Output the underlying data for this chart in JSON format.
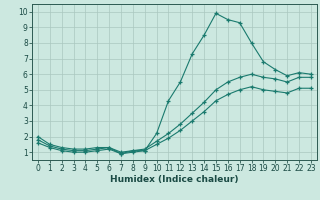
{
  "xlabel": "Humidex (Indice chaleur)",
  "xlim": [
    -0.5,
    23.5
  ],
  "ylim": [
    0.5,
    10.5
  ],
  "xtick_labels": [
    "0",
    "1",
    "2",
    "3",
    "4",
    "5",
    "6",
    "7",
    "8",
    "9",
    "10",
    "11",
    "12",
    "13",
    "14",
    "15",
    "16",
    "17",
    "18",
    "19",
    "20",
    "21",
    "22",
    "23"
  ],
  "xticks": [
    0,
    1,
    2,
    3,
    4,
    5,
    6,
    7,
    8,
    9,
    10,
    11,
    12,
    13,
    14,
    15,
    16,
    17,
    18,
    19,
    20,
    21,
    22,
    23
  ],
  "yticks": [
    1,
    2,
    3,
    4,
    5,
    6,
    7,
    8,
    9,
    10
  ],
  "background_color": "#cce8e0",
  "grid_color": "#aac8c0",
  "line_color": "#1a7a6e",
  "line1_x": [
    0,
    1,
    2,
    3,
    4,
    5,
    6,
    7,
    8,
    9,
    10,
    11,
    12,
    13,
    14,
    15,
    16,
    17,
    18,
    19,
    20,
    21,
    22,
    23
  ],
  "line1_y": [
    2.0,
    1.5,
    1.3,
    1.2,
    1.2,
    1.3,
    1.3,
    0.9,
    1.1,
    1.1,
    2.2,
    4.3,
    5.5,
    7.3,
    8.5,
    9.9,
    9.5,
    9.3,
    8.0,
    6.8,
    6.3,
    5.9,
    6.1,
    6.0
  ],
  "line2_x": [
    0,
    1,
    2,
    3,
    4,
    5,
    6,
    7,
    8,
    9,
    10,
    11,
    12,
    13,
    14,
    15,
    16,
    17,
    18,
    19,
    20,
    21,
    22,
    23
  ],
  "line2_y": [
    1.8,
    1.4,
    1.2,
    1.1,
    1.1,
    1.2,
    1.3,
    1.0,
    1.1,
    1.2,
    1.7,
    2.2,
    2.8,
    3.5,
    4.2,
    5.0,
    5.5,
    5.8,
    6.0,
    5.8,
    5.7,
    5.5,
    5.8,
    5.8
  ],
  "line3_x": [
    0,
    1,
    2,
    3,
    4,
    5,
    6,
    7,
    8,
    9,
    10,
    11,
    12,
    13,
    14,
    15,
    16,
    17,
    18,
    19,
    20,
    21,
    22,
    23
  ],
  "line3_y": [
    1.6,
    1.3,
    1.1,
    1.0,
    1.0,
    1.1,
    1.2,
    0.9,
    1.0,
    1.1,
    1.5,
    1.9,
    2.4,
    3.0,
    3.6,
    4.3,
    4.7,
    5.0,
    5.2,
    5.0,
    4.9,
    4.8,
    5.1,
    5.1
  ]
}
